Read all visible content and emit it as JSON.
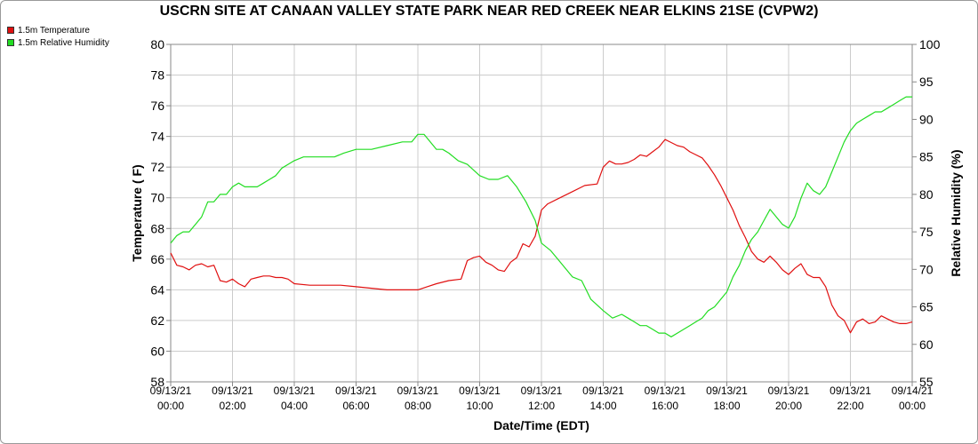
{
  "chart_data": {
    "type": "line",
    "title": "USCRN SITE AT CANAAN VALLEY STATE PARK NEAR RED CREEK NEAR ELKINS 21SE (CVPW2)",
    "xlabel": "Date/Time (EDT)",
    "ylabel_left": "Temperature ( F)",
    "ylabel_right": "Relative Humidity (%)",
    "xlim_hours": [
      0,
      24
    ],
    "ylim_left": [
      58,
      80
    ],
    "ylim_right": [
      55,
      100
    ],
    "y_ticks_left": [
      58,
      60,
      62,
      64,
      66,
      68,
      70,
      72,
      74,
      76,
      78,
      80
    ],
    "y_ticks_right": [
      55,
      60,
      65,
      70,
      75,
      80,
      85,
      90,
      95,
      100
    ],
    "x_ticks": [
      {
        "hour": 0,
        "date": "09/13/21",
        "time": "00:00"
      },
      {
        "hour": 2,
        "date": "09/13/21",
        "time": "02:00"
      },
      {
        "hour": 4,
        "date": "09/13/21",
        "time": "04:00"
      },
      {
        "hour": 6,
        "date": "09/13/21",
        "time": "06:00"
      },
      {
        "hour": 8,
        "date": "09/13/21",
        "time": "08:00"
      },
      {
        "hour": 10,
        "date": "09/13/21",
        "time": "10:00"
      },
      {
        "hour": 12,
        "date": "09/13/21",
        "time": "12:00"
      },
      {
        "hour": 14,
        "date": "09/13/21",
        "time": "14:00"
      },
      {
        "hour": 16,
        "date": "09/13/21",
        "time": "16:00"
      },
      {
        "hour": 18,
        "date": "09/13/21",
        "time": "18:00"
      },
      {
        "hour": 20,
        "date": "09/13/21",
        "time": "20:00"
      },
      {
        "hour": 22,
        "date": "09/13/21",
        "time": "22:00"
      },
      {
        "hour": 24,
        "date": "09/14/21",
        "time": "00:00"
      }
    ],
    "grid": true,
    "legend_position": "top-left",
    "series": [
      {
        "name": "1.5m Temperature",
        "axis": "left",
        "color": "#e01010",
        "x": [
          0,
          0.2,
          0.4,
          0.6,
          0.8,
          1.0,
          1.2,
          1.4,
          1.6,
          1.8,
          2.0,
          2.2,
          2.4,
          2.6,
          2.8,
          3.0,
          3.2,
          3.4,
          3.6,
          3.8,
          4.0,
          4.5,
          5.0,
          5.5,
          6.0,
          6.5,
          7.0,
          7.5,
          8.0,
          8.3,
          8.6,
          9.0,
          9.4,
          9.6,
          9.8,
          10.0,
          10.2,
          10.4,
          10.6,
          10.8,
          11.0,
          11.2,
          11.4,
          11.6,
          11.8,
          12.0,
          12.2,
          12.6,
          13.0,
          13.4,
          13.8,
          14.0,
          14.2,
          14.4,
          14.6,
          14.8,
          15.0,
          15.2,
          15.4,
          15.6,
          15.8,
          16.0,
          16.2,
          16.4,
          16.6,
          16.8,
          17.0,
          17.2,
          17.4,
          17.6,
          17.8,
          18.0,
          18.2,
          18.4,
          18.6,
          18.8,
          19.0,
          19.2,
          19.4,
          19.6,
          19.8,
          20.0,
          20.2,
          20.4,
          20.6,
          20.8,
          21.0,
          21.2,
          21.4,
          21.6,
          21.8,
          22.0,
          22.2,
          22.4,
          22.6,
          22.8,
          23.0,
          23.2,
          23.4,
          23.6,
          23.8,
          24.0
        ],
        "values": [
          66.4,
          65.6,
          65.5,
          65.3,
          65.6,
          65.7,
          65.5,
          65.6,
          64.6,
          64.5,
          64.7,
          64.4,
          64.2,
          64.7,
          64.8,
          64.9,
          64.9,
          64.8,
          64.8,
          64.7,
          64.4,
          64.3,
          64.3,
          64.3,
          64.2,
          64.1,
          64.0,
          64.0,
          64.0,
          64.2,
          64.4,
          64.6,
          64.7,
          65.9,
          66.1,
          66.2,
          65.8,
          65.6,
          65.3,
          65.2,
          65.8,
          66.1,
          67.0,
          66.8,
          67.5,
          69.2,
          69.6,
          70.0,
          70.4,
          70.8,
          70.9,
          72.0,
          72.4,
          72.2,
          72.2,
          72.3,
          72.5,
          72.8,
          72.7,
          73.0,
          73.3,
          73.8,
          73.6,
          73.4,
          73.3,
          73.0,
          72.8,
          72.6,
          72.1,
          71.5,
          70.8,
          70.0,
          69.2,
          68.2,
          67.4,
          66.5,
          66.0,
          65.8,
          66.2,
          65.8,
          65.3,
          65.0,
          65.4,
          65.7,
          65.0,
          64.8,
          64.8,
          64.2,
          63.0,
          62.3,
          62.0,
          61.2,
          61.9,
          62.1,
          61.8,
          61.9,
          62.3,
          62.1,
          61.9,
          61.8,
          61.8,
          61.9
        ]
      },
      {
        "name": "1.5m Relative Humidity",
        "axis": "right",
        "color": "#22dd22",
        "x": [
          0,
          0.2,
          0.4,
          0.6,
          0.8,
          1.0,
          1.2,
          1.4,
          1.6,
          1.8,
          2.0,
          2.2,
          2.4,
          2.6,
          2.8,
          3.0,
          3.2,
          3.4,
          3.6,
          3.8,
          4.0,
          4.3,
          4.6,
          5.0,
          5.3,
          5.6,
          6.0,
          6.5,
          7.0,
          7.5,
          7.8,
          8.0,
          8.2,
          8.4,
          8.6,
          8.8,
          9.0,
          9.3,
          9.6,
          10.0,
          10.3,
          10.6,
          10.9,
          11.2,
          11.5,
          11.8,
          12.0,
          12.3,
          12.6,
          13.0,
          13.3,
          13.6,
          14.0,
          14.3,
          14.6,
          14.8,
          15.0,
          15.2,
          15.4,
          15.6,
          15.8,
          16.0,
          16.2,
          16.4,
          16.6,
          16.8,
          17.0,
          17.2,
          17.4,
          17.6,
          17.8,
          18.0,
          18.2,
          18.4,
          18.6,
          18.8,
          19.0,
          19.2,
          19.4,
          19.6,
          19.8,
          20.0,
          20.2,
          20.4,
          20.6,
          20.8,
          21.0,
          21.2,
          21.4,
          21.6,
          21.8,
          22.0,
          22.2,
          22.4,
          22.6,
          22.8,
          23.0,
          23.2,
          23.4,
          23.6,
          23.8,
          24.0
        ],
        "values": [
          73.5,
          74.5,
          75.0,
          75.0,
          76.0,
          77.0,
          79.0,
          79.0,
          80.0,
          80.0,
          81.0,
          81.5,
          81.0,
          81.0,
          81.0,
          81.5,
          82.0,
          82.5,
          83.5,
          84.0,
          84.5,
          85.0,
          85.0,
          85.0,
          85.0,
          85.5,
          86.0,
          86.0,
          86.5,
          87.0,
          87.0,
          88.0,
          88.0,
          87.0,
          86.0,
          86.0,
          85.5,
          84.5,
          84.0,
          82.5,
          82.0,
          82.0,
          82.5,
          81.0,
          79.0,
          76.5,
          73.5,
          72.5,
          71.0,
          69.0,
          68.5,
          66.0,
          64.5,
          63.5,
          64.0,
          63.5,
          63.0,
          62.5,
          62.5,
          62.0,
          61.5,
          61.5,
          61.0,
          61.5,
          62.0,
          62.5,
          63.0,
          63.5,
          64.5,
          65.0,
          66.0,
          67.0,
          69.0,
          70.5,
          72.5,
          74.0,
          75.0,
          76.5,
          78.0,
          77.0,
          76.0,
          75.5,
          77.0,
          79.5,
          81.5,
          80.5,
          80.0,
          81.0,
          83.0,
          85.0,
          87.0,
          88.5,
          89.5,
          90.0,
          90.5,
          91.0,
          91.0,
          91.5,
          92.0,
          92.5,
          93.0,
          93.0
        ]
      }
    ]
  },
  "colors": {
    "temperature": "#e01010",
    "humidity": "#22dd22",
    "grid": "#cccccc"
  }
}
